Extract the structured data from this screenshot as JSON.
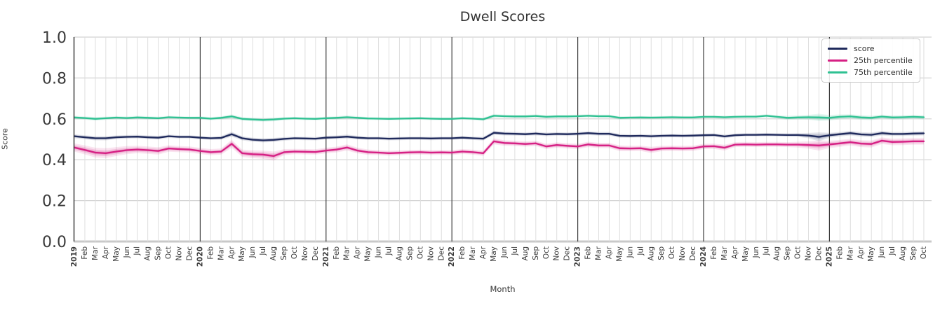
{
  "chart_data": {
    "type": "line",
    "title": "Dwell Scores",
    "xlabel": "Month",
    "ylabel": "Score",
    "ylim": [
      0.0,
      1.0
    ],
    "yticks": [
      0.0,
      0.2,
      0.4,
      0.6,
      0.8,
      1.0
    ],
    "grid": true,
    "legend_position": "upper right",
    "x_labels": [
      "2019",
      "Feb",
      "Mar",
      "Apr",
      "May",
      "Jun",
      "Jul",
      "Aug",
      "Sep",
      "Oct",
      "Nov",
      "Dec",
      "2020",
      "Feb",
      "Mar",
      "Apr",
      "May",
      "Jun",
      "Jul",
      "Aug",
      "Sep",
      "Oct",
      "Nov",
      "Dec",
      "2021",
      "Feb",
      "Mar",
      "Apr",
      "May",
      "Jun",
      "Jul",
      "Aug",
      "Sep",
      "Oct",
      "Nov",
      "Dec",
      "2022",
      "Feb",
      "Mar",
      "Apr",
      "May",
      "Jun",
      "Jul",
      "Aug",
      "Sep",
      "Oct",
      "Nov",
      "Dec",
      "2023",
      "Feb",
      "Mar",
      "Apr",
      "May",
      "Jun",
      "Jul",
      "Aug",
      "Sep",
      "Oct",
      "Nov",
      "Dec",
      "2024",
      "Feb",
      "Mar",
      "Apr",
      "May",
      "Jun",
      "Jul",
      "Aug",
      "Sep",
      "Oct",
      "Nov",
      "Dec",
      "2025",
      "Feb",
      "Mar",
      "Apr",
      "May",
      "Jun",
      "Jul",
      "Aug",
      "Sep",
      "Oct"
    ],
    "series": [
      {
        "name": "score",
        "color": "#1f2a5c",
        "values": [
          0.515,
          0.51,
          0.505,
          0.505,
          0.51,
          0.512,
          0.513,
          0.51,
          0.508,
          0.515,
          0.512,
          0.512,
          0.508,
          0.505,
          0.507,
          0.525,
          0.505,
          0.498,
          0.495,
          0.497,
          0.502,
          0.505,
          0.504,
          0.503,
          0.508,
          0.51,
          0.513,
          0.508,
          0.505,
          0.505,
          0.503,
          0.504,
          0.505,
          0.505,
          0.504,
          0.505,
          0.505,
          0.508,
          0.505,
          0.503,
          0.532,
          0.528,
          0.527,
          0.525,
          0.528,
          0.524,
          0.526,
          0.525,
          0.527,
          0.53,
          0.527,
          0.527,
          0.517,
          0.516,
          0.517,
          0.515,
          0.517,
          0.518,
          0.517,
          0.518,
          0.52,
          0.521,
          0.514,
          0.52,
          0.522,
          0.522,
          0.523,
          0.522,
          0.521,
          0.521,
          0.518,
          0.512,
          0.52,
          0.525,
          0.53,
          0.524,
          0.522,
          0.53,
          0.526,
          0.526,
          0.528,
          0.529
        ],
        "ci": [
          0.01,
          0.01,
          0.01,
          0.01,
          0.009,
          0.009,
          0.009,
          0.009,
          0.009,
          0.008,
          0.008,
          0.008,
          0.008,
          0.008,
          0.009,
          0.012,
          0.01,
          0.01,
          0.01,
          0.01,
          0.009,
          0.008,
          0.008,
          0.008,
          0.009,
          0.009,
          0.01,
          0.009,
          0.008,
          0.008,
          0.008,
          0.008,
          0.008,
          0.008,
          0.008,
          0.008,
          0.008,
          0.008,
          0.008,
          0.009,
          0.01,
          0.009,
          0.009,
          0.009,
          0.009,
          0.009,
          0.009,
          0.009,
          0.009,
          0.009,
          0.009,
          0.009,
          0.009,
          0.008,
          0.008,
          0.009,
          0.008,
          0.008,
          0.008,
          0.008,
          0.008,
          0.008,
          0.009,
          0.008,
          0.008,
          0.008,
          0.008,
          0.008,
          0.008,
          0.009,
          0.013,
          0.022,
          0.012,
          0.011,
          0.011,
          0.011,
          0.011,
          0.011,
          0.01,
          0.01,
          0.01,
          0.01
        ]
      },
      {
        "name": "25th percentile",
        "color": "#d62084",
        "values": [
          0.46,
          0.448,
          0.435,
          0.432,
          0.44,
          0.447,
          0.45,
          0.447,
          0.443,
          0.455,
          0.452,
          0.45,
          0.443,
          0.437,
          0.44,
          0.478,
          0.432,
          0.427,
          0.425,
          0.418,
          0.437,
          0.44,
          0.439,
          0.438,
          0.445,
          0.45,
          0.46,
          0.445,
          0.437,
          0.435,
          0.432,
          0.434,
          0.436,
          0.437,
          0.435,
          0.436,
          0.435,
          0.44,
          0.437,
          0.432,
          0.49,
          0.482,
          0.48,
          0.477,
          0.48,
          0.465,
          0.472,
          0.468,
          0.465,
          0.475,
          0.47,
          0.47,
          0.456,
          0.455,
          0.456,
          0.448,
          0.455,
          0.456,
          0.455,
          0.456,
          0.465,
          0.466,
          0.459,
          0.474,
          0.475,
          0.474,
          0.475,
          0.475,
          0.474,
          0.474,
          0.472,
          0.47,
          0.475,
          0.48,
          0.486,
          0.479,
          0.477,
          0.493,
          0.487,
          0.488,
          0.49,
          0.49
        ],
        "ci": [
          0.02,
          0.022,
          0.024,
          0.024,
          0.022,
          0.02,
          0.018,
          0.018,
          0.018,
          0.016,
          0.015,
          0.015,
          0.015,
          0.015,
          0.015,
          0.02,
          0.018,
          0.019,
          0.02,
          0.022,
          0.015,
          0.013,
          0.013,
          0.013,
          0.014,
          0.014,
          0.015,
          0.014,
          0.013,
          0.012,
          0.012,
          0.012,
          0.012,
          0.012,
          0.012,
          0.012,
          0.012,
          0.012,
          0.012,
          0.013,
          0.015,
          0.013,
          0.013,
          0.013,
          0.013,
          0.013,
          0.013,
          0.013,
          0.013,
          0.013,
          0.013,
          0.013,
          0.014,
          0.013,
          0.013,
          0.015,
          0.013,
          0.013,
          0.013,
          0.013,
          0.013,
          0.013,
          0.014,
          0.012,
          0.012,
          0.012,
          0.012,
          0.012,
          0.012,
          0.014,
          0.018,
          0.025,
          0.018,
          0.017,
          0.016,
          0.017,
          0.017,
          0.016,
          0.016,
          0.016,
          0.016,
          0.016
        ]
      },
      {
        "name": "75th percentile",
        "color": "#2fc192",
        "values": [
          0.607,
          0.604,
          0.6,
          0.603,
          0.606,
          0.604,
          0.607,
          0.605,
          0.603,
          0.608,
          0.606,
          0.605,
          0.605,
          0.601,
          0.605,
          0.612,
          0.6,
          0.597,
          0.595,
          0.597,
          0.601,
          0.603,
          0.601,
          0.6,
          0.603,
          0.605,
          0.608,
          0.605,
          0.602,
          0.601,
          0.6,
          0.601,
          0.602,
          0.603,
          0.601,
          0.6,
          0.6,
          0.603,
          0.601,
          0.598,
          0.615,
          0.613,
          0.612,
          0.612,
          0.614,
          0.61,
          0.612,
          0.612,
          0.613,
          0.615,
          0.613,
          0.613,
          0.605,
          0.606,
          0.607,
          0.606,
          0.607,
          0.608,
          0.607,
          0.607,
          0.61,
          0.61,
          0.608,
          0.61,
          0.611,
          0.611,
          0.615,
          0.61,
          0.605,
          0.607,
          0.608,
          0.607,
          0.605,
          0.61,
          0.612,
          0.607,
          0.605,
          0.611,
          0.607,
          0.608,
          0.61,
          0.608
        ],
        "ci": [
          0.008,
          0.008,
          0.009,
          0.008,
          0.008,
          0.008,
          0.008,
          0.008,
          0.008,
          0.007,
          0.007,
          0.007,
          0.008,
          0.008,
          0.008,
          0.01,
          0.009,
          0.009,
          0.009,
          0.009,
          0.008,
          0.007,
          0.007,
          0.007,
          0.008,
          0.008,
          0.009,
          0.008,
          0.007,
          0.007,
          0.007,
          0.007,
          0.007,
          0.007,
          0.007,
          0.007,
          0.007,
          0.007,
          0.007,
          0.008,
          0.009,
          0.008,
          0.008,
          0.008,
          0.008,
          0.008,
          0.008,
          0.008,
          0.008,
          0.008,
          0.008,
          0.008,
          0.008,
          0.007,
          0.007,
          0.007,
          0.007,
          0.007,
          0.007,
          0.007,
          0.007,
          0.007,
          0.008,
          0.007,
          0.007,
          0.007,
          0.008,
          0.008,
          0.01,
          0.01,
          0.012,
          0.018,
          0.014,
          0.012,
          0.011,
          0.011,
          0.011,
          0.01,
          0.01,
          0.01,
          0.01,
          0.01
        ]
      }
    ],
    "style": {
      "grid_color": "#dedede",
      "hgrid_color": "#d2d2d2",
      "year_line_color": "#3d3d3d",
      "axis_text_color": "#3a3a3a",
      "bottom_axis_color": "#c9c9c9"
    }
  }
}
